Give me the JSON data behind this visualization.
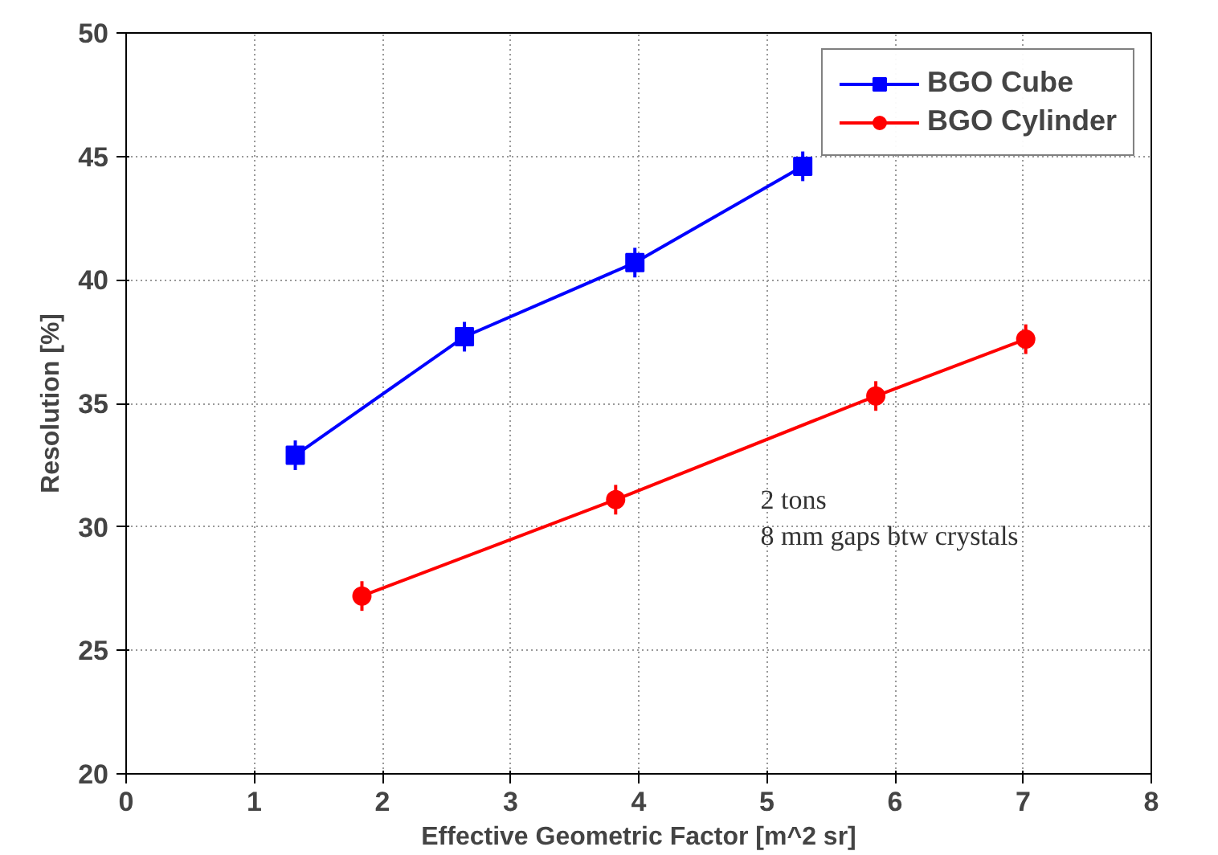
{
  "chart_data": {
    "type": "line",
    "xlabel": "Effective Geometric Factor [m^2 sr]",
    "ylabel": "Resolution [%]",
    "series": [
      {
        "name": "BGO Cube",
        "color": "#0000ff",
        "marker": "square",
        "x": [
          1.32,
          2.64,
          3.97,
          5.28
        ],
        "values": [
          32.9,
          37.7,
          40.7,
          44.6
        ],
        "errors": [
          0.6,
          0.6,
          0.6,
          0.6
        ]
      },
      {
        "name": "BGO Cylinder",
        "color": "#ff0000",
        "marker": "circle",
        "x": [
          1.84,
          3.82,
          5.85,
          7.02
        ],
        "values": [
          27.2,
          31.1,
          35.3,
          37.6
        ],
        "errors": [
          0.6,
          0.6,
          0.6,
          0.6
        ]
      }
    ],
    "xlim": [
      0,
      8
    ],
    "xticks": [
      0,
      1,
      2,
      3,
      4,
      5,
      6,
      7,
      8
    ],
    "ylim": [
      20,
      50
    ],
    "yticks": [
      20,
      25,
      30,
      35,
      40,
      45,
      50
    ],
    "grid": true,
    "legend": "top right",
    "annotations": [
      "2 tons\n8 mm gaps btw crystals"
    ]
  }
}
